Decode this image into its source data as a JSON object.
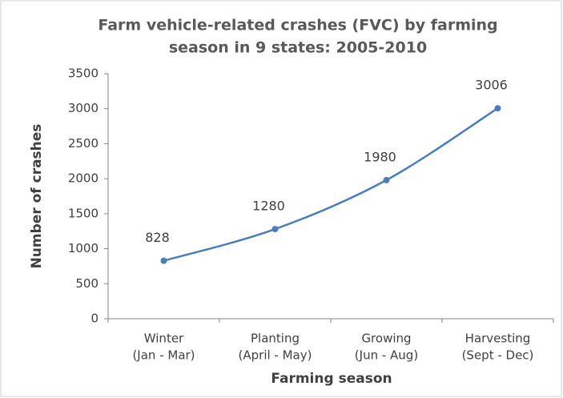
{
  "chart_data": {
    "type": "line",
    "title": [
      "Farm vehicle-related crashes (FVC) by farming",
      "season in 9 states: 2005-2010"
    ],
    "x_label": "Farming season",
    "y_label": "Number of crashes",
    "categories": [
      [
        "Winter",
        "(Jan  - Mar)"
      ],
      [
        "Planting",
        "(April - May)"
      ],
      [
        "Growing",
        "(Jun - Aug)"
      ],
      [
        "Harvesting",
        "(Sept - Dec)"
      ]
    ],
    "series": [
      {
        "name": "FVC",
        "color": "#4a7ebb",
        "values": [
          828,
          1280,
          1980,
          3006
        ]
      }
    ],
    "ylim": [
      0,
      3500
    ],
    "yticks": [
      0,
      500,
      1000,
      1500,
      2000,
      2500,
      3000,
      3500
    ],
    "grid": false
  }
}
